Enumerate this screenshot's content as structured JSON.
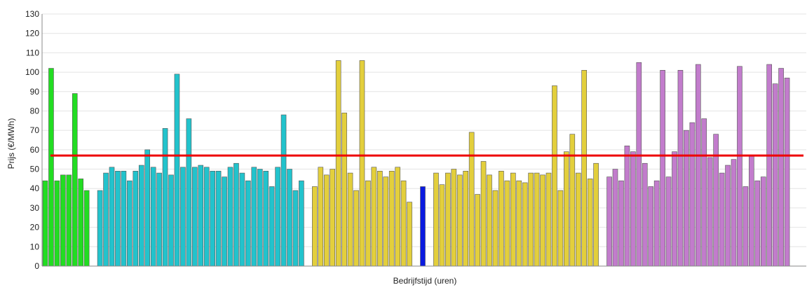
{
  "chart_data": {
    "type": "bar",
    "title": "",
    "xlabel": "Bedrijfstijd (uren)",
    "ylabel": "Prijs (€/MWh)",
    "ylim": [
      0,
      130
    ],
    "yticks": [
      0,
      10,
      20,
      30,
      40,
      50,
      60,
      70,
      80,
      90,
      100,
      110,
      120,
      130
    ],
    "grid": true,
    "legend": "none",
    "reference_line": {
      "value": 57,
      "color": "#ee0000"
    },
    "colors": {
      "green": "#22dd22",
      "cyan": "#22c3cc",
      "yellow": "#e3cf3c",
      "blue": "#0a1ae0",
      "purple": "#c27ccc"
    },
    "groups": [
      {
        "color": "green",
        "values": [
          44,
          102,
          44,
          47,
          47,
          89,
          45,
          39
        ]
      },
      {
        "color": "cyan",
        "values": [
          39,
          48,
          51,
          49,
          49,
          44,
          49,
          52,
          60,
          51,
          48,
          71,
          47,
          99,
          51,
          76,
          51,
          52,
          51,
          49,
          49,
          46,
          51,
          53,
          48,
          44,
          51,
          50,
          49,
          41,
          51,
          78,
          50,
          39,
          44
        ]
      },
      {
        "color": "yellow",
        "values": [
          41,
          51,
          47,
          50,
          106,
          79,
          48,
          39,
          106,
          44,
          51,
          49,
          46,
          49,
          51,
          44,
          33
        ]
      },
      {
        "color": "blue",
        "values": [
          41
        ]
      },
      {
        "color": "yellow",
        "values": [
          48,
          42,
          48,
          50,
          47,
          49,
          69,
          37,
          54,
          47,
          39,
          49,
          44,
          48,
          44,
          43,
          48,
          48,
          47,
          48,
          93,
          39,
          59,
          68,
          48,
          101,
          45,
          53
        ]
      },
      {
        "color": "purple",
        "values": [
          46,
          50,
          44,
          62,
          59,
          105,
          53,
          41,
          44,
          101,
          46,
          59,
          101,
          70,
          74,
          104,
          76,
          56,
          68,
          48,
          52,
          55,
          103,
          41,
          57,
          44,
          46,
          104,
          94,
          102,
          97
        ]
      }
    ]
  }
}
